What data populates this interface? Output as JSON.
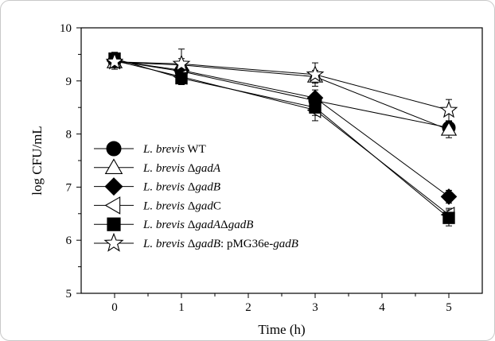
{
  "chart_data": {
    "type": "line",
    "xlabel": "Time (h)",
    "ylabel": "log CFU/mL",
    "xlim": [
      -0.5,
      5.5
    ],
    "ylim": [
      5,
      10
    ],
    "x_ticks": [
      0,
      1,
      2,
      3,
      4,
      5
    ],
    "y_ticks": [
      5,
      6,
      7,
      8,
      9,
      10
    ],
    "legend_position": "lower-left",
    "grid": false,
    "series": [
      {
        "name_parts": [
          "L. brevis",
          " WT",
          ""
        ],
        "marker": "circle-filled",
        "x": [
          0,
          1,
          3,
          5
        ],
        "y": [
          9.38,
          9.18,
          8.63,
          8.12
        ],
        "err": [
          0.12,
          0.1,
          0.12,
          0.12
        ]
      },
      {
        "name_parts": [
          "L. brevis",
          " Δ",
          "gadA"
        ],
        "marker": "triangle-open",
        "x": [
          0,
          1,
          3,
          5
        ],
        "y": [
          9.35,
          9.3,
          9.08,
          8.08
        ],
        "err": [
          0.1,
          0.12,
          0.12,
          0.15
        ]
      },
      {
        "name_parts": [
          "L. brevis",
          " Δ",
          "gadB"
        ],
        "marker": "diamond-filled",
        "x": [
          0,
          1,
          3,
          5
        ],
        "y": [
          9.38,
          9.2,
          8.68,
          6.82
        ],
        "err": [
          0.12,
          0.1,
          0.15,
          0.12
        ]
      },
      {
        "name_parts": [
          "L. brevis",
          " Δ",
          "gad",
          "C"
        ],
        "marker": "triangle-left-open",
        "x": [
          0,
          1,
          3,
          5
        ],
        "y": [
          9.38,
          9.08,
          8.45,
          6.48
        ],
        "err": [
          0.12,
          0.12,
          0.2,
          0.12
        ]
      },
      {
        "name_parts": [
          "L. brevis",
          " Δ",
          "gadA",
          "Δ",
          "gadB"
        ],
        "marker": "square-filled",
        "x": [
          0,
          1,
          3,
          5
        ],
        "y": [
          9.42,
          9.05,
          8.5,
          6.42
        ],
        "err": [
          0.12,
          0.12,
          0.15,
          0.15
        ]
      },
      {
        "name_parts": [
          "L. brevis",
          " Δ",
          "gadB",
          ": pMG36e-",
          "gadB"
        ],
        "marker": "star-open",
        "x": [
          0,
          1,
          3,
          5
        ],
        "y": [
          9.36,
          9.32,
          9.12,
          8.45
        ],
        "err": [
          0.14,
          0.28,
          0.22,
          0.2
        ]
      }
    ]
  }
}
